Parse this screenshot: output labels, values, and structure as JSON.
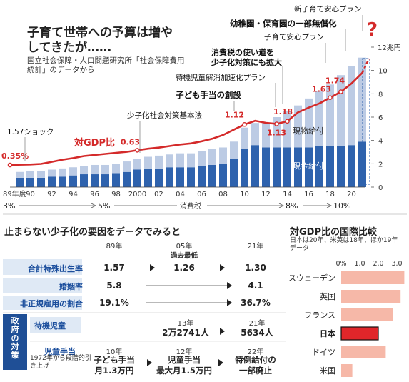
{
  "headline": {
    "title": "子育て世帯への予算は増やしてきたが……",
    "source": "国立社会保障・人口問題研究所「社会保障費用統計」のデータから"
  },
  "chart_data": [
    {
      "type": "bar",
      "stacked": true,
      "x": [
        1989,
        1990,
        1991,
        1992,
        1993,
        1994,
        1995,
        1996,
        1997,
        1998,
        1999,
        2000,
        2001,
        2002,
        2003,
        2004,
        2005,
        2006,
        2007,
        2008,
        2009,
        2010,
        2011,
        2012,
        2013,
        2014,
        2015,
        2016,
        2017,
        2018,
        2019,
        2020,
        2021
      ],
      "x_tick_labels": [
        "89年度",
        "90",
        "92",
        "94",
        "96",
        "98",
        "2000",
        "02",
        "04",
        "06",
        "08",
        "10",
        "12",
        "14",
        "16",
        "18",
        "20"
      ],
      "series": [
        {
          "name": "現金給付",
          "color": "#2e62ad",
          "values": [
            0.8,
            0.8,
            0.8,
            0.9,
            0.9,
            1.0,
            1.1,
            1.1,
            1.1,
            1.2,
            1.3,
            1.5,
            1.6,
            1.6,
            1.7,
            1.7,
            1.7,
            1.8,
            1.9,
            2.0,
            2.4,
            3.3,
            3.6,
            3.4,
            3.4,
            3.4,
            3.4,
            3.4,
            3.5,
            3.5,
            3.5,
            3.6,
            3.9
          ]
        },
        {
          "name": "現物給付",
          "color": "#bccbe4",
          "values": [
            0.5,
            0.6,
            0.6,
            0.6,
            0.7,
            0.7,
            0.7,
            0.8,
            0.8,
            0.8,
            0.9,
            0.9,
            1.0,
            1.1,
            1.1,
            1.2,
            1.2,
            1.3,
            1.4,
            1.4,
            1.5,
            1.8,
            1.9,
            2.1,
            2.6,
            3.1,
            3.6,
            4.2,
            4.7,
            5.3,
            6.1,
            6.8,
            7.2
          ]
        }
      ],
      "gdp_ratio_line": {
        "name": "対GDP比",
        "color": "#d42a2a",
        "values": [
          0.35,
          0.36,
          0.37,
          0.41,
          0.45,
          0.48,
          0.52,
          0.54,
          0.56,
          0.58,
          0.6,
          0.63,
          0.66,
          0.68,
          0.71,
          0.74,
          0.76,
          0.8,
          0.85,
          0.92,
          1.02,
          1.12,
          1.19,
          1.15,
          1.13,
          1.18,
          1.35,
          1.44,
          1.52,
          1.63,
          1.74,
          1.9,
          2.1
        ],
        "labels": [
          {
            "year": 1989,
            "text": "0.35%"
          },
          {
            "year": 2000,
            "text": "0.63"
          },
          {
            "year": 2010,
            "text": "1.12"
          },
          {
            "year": 2013,
            "text": "1.13"
          },
          {
            "year": 2014,
            "text": "1.18"
          },
          {
            "year": 2018,
            "text": "1.63"
          },
          {
            "year": 2019,
            "text": "1.74"
          }
        ]
      },
      "future_marker": "?",
      "ylim": [
        0,
        12
      ],
      "y_ticks": [
        0,
        2,
        4,
        6,
        8,
        10,
        12
      ],
      "y_top_label": "12兆円",
      "annotations": [
        {
          "year": 1990,
          "text": "1.57ショック"
        },
        {
          "year": 1999,
          "text": "少子化社会対策基本法"
        },
        {
          "year": 2009,
          "text": "子ども手当の創設"
        },
        {
          "year": 2013,
          "text": "待機児童解消加速化プラン"
        },
        {
          "year": 2014,
          "text": "消費税の使い道を少子化対策にも拡大"
        },
        {
          "year": 2017,
          "text": "子育て安心プラン"
        },
        {
          "year": 2019,
          "text": "幼稚園・保育園の一部無償化"
        },
        {
          "year": 2021,
          "text": "新子育て安心プラン"
        }
      ],
      "consumption_tax": {
        "label": "消費税",
        "rates": [
          "3%",
          "5%",
          "8%",
          "10%"
        ],
        "rate_years": [
          1989,
          1997,
          2014,
          2019
        ]
      },
      "inner_labels": {
        "in_kind": "現物給付",
        "cash": "現金給付",
        "ratio": "対GDP比"
      }
    },
    {
      "type": "bar",
      "title": "対GDP比の国際比較",
      "note": "日本は20年、米英は18年、ほか19年データ",
      "categories": [
        "スウェーデン",
        "英国",
        "フランス",
        "日本",
        "ドイツ",
        "米国"
      ],
      "values": [
        3.4,
        3.2,
        2.8,
        2.0,
        2.4,
        0.6
      ],
      "xlim": [
        0,
        3.4
      ],
      "x_ticks": [
        "0%",
        "1.0",
        "2.0",
        "3.0"
      ],
      "highlight": "日本",
      "colors": {
        "normal": "#f6b8a8",
        "highlight": "#e0262a"
      }
    }
  ],
  "factors": {
    "title": "止まらない少子化の要因をデータでみると",
    "years": [
      "89年",
      "05年",
      "21年"
    ],
    "rows": [
      {
        "label": "合計特殊出生率",
        "v1": "1.57",
        "v2_note": "過去最低",
        "v2": "1.26",
        "v3": "1.30"
      },
      {
        "label": "婚姻率",
        "v1": "5.8",
        "v3": "4.1"
      },
      {
        "label": "非正規雇用の割合",
        "v1": "19.1%",
        "v3": "36.7%"
      }
    ],
    "gov": {
      "side_label": "政府の対策",
      "waiting": {
        "label": "待機児童",
        "y1": "13年",
        "v1": "2万2741人",
        "y2": "21年",
        "v2": "5634人"
      },
      "allowance": {
        "label": "児童手当",
        "note": "1972年から段階的引き上げ",
        "y1": "10年",
        "v1a": "子ども手当",
        "v1b": "月1.3万円",
        "y2": "12年",
        "v2a": "児童手当",
        "v2b": "最大月1.5万円",
        "y3": "22年",
        "v3a": "特例給付の",
        "v3b": "一部廃止"
      }
    }
  }
}
